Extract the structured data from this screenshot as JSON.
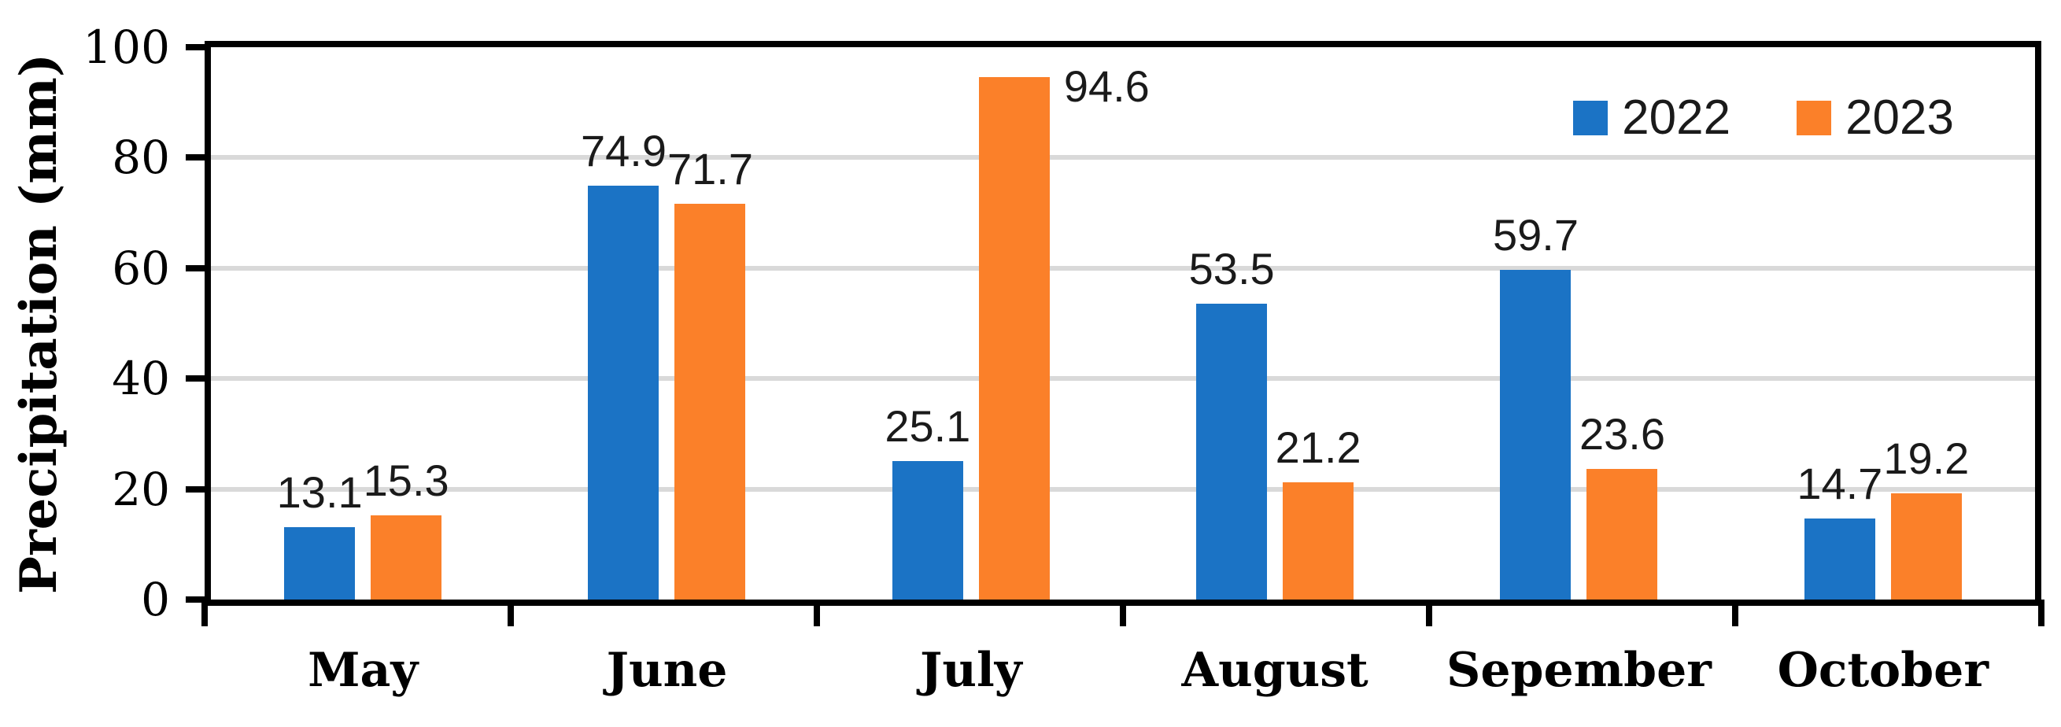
{
  "chart_data": {
    "type": "bar",
    "title": "",
    "ylabel": "Precipitation (mm)",
    "xlabel": "",
    "categories": [
      "May",
      "June",
      "July",
      "August",
      "Sepember",
      "October"
    ],
    "series": [
      {
        "name": "2022",
        "color": "#1b73c5",
        "values": [
          13.1,
          74.9,
          25.1,
          53.5,
          59.7,
          14.7
        ]
      },
      {
        "name": "2023",
        "color": "#fb8029",
        "values": [
          15.3,
          71.7,
          94.6,
          21.2,
          23.6,
          19.2
        ]
      }
    ],
    "ylim": [
      0,
      100
    ],
    "yticks": [
      0,
      20,
      40,
      60,
      80,
      100
    ],
    "grid": "horizontal",
    "gridline_color": "#d9d9d9",
    "axis_color": "#000000",
    "legend_position": "top-right-inside",
    "data_labels": true,
    "label_sides": [
      {
        "series": "2023",
        "category": "July",
        "side": "right"
      }
    ]
  }
}
